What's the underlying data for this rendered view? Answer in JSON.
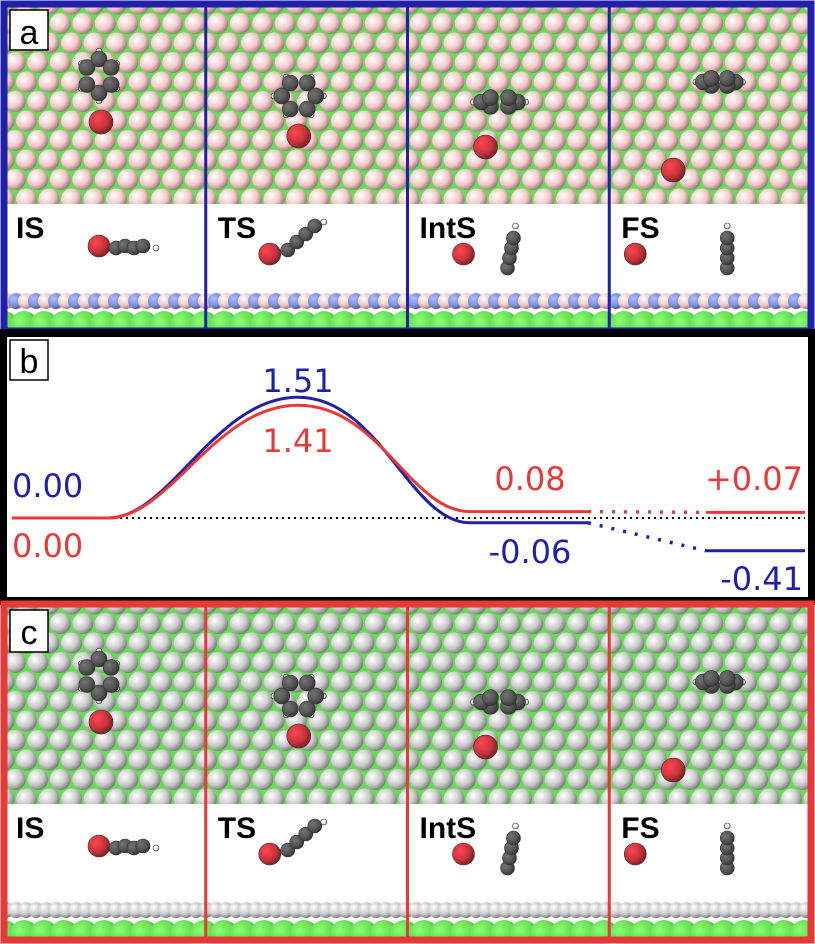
{
  "panels": {
    "a": {
      "label": "a",
      "frame_color": "#1f1fa8",
      "surface_atoms": [
        "#f4c6c6",
        "#66dd55"
      ],
      "side_atoms": [
        "#f4c6c6",
        "#7f8fe0",
        "#66dd55"
      ],
      "states": [
        {
          "label": "IS",
          "step": "is"
        },
        {
          "label": "TS",
          "step": "ts"
        },
        {
          "label": "IntS",
          "step": "ints"
        },
        {
          "label": "FS",
          "step": "fs"
        }
      ]
    },
    "b": {
      "label": "b"
    },
    "c": {
      "label": "c",
      "frame_color": "#e83838",
      "surface_atoms": [
        "#c8c8c8",
        "#66dd55"
      ],
      "side_atoms": [
        "#c8c8c8",
        "#c8c8c8",
        "#66dd55"
      ],
      "states": [
        {
          "label": "IS",
          "step": "is"
        },
        {
          "label": "TS",
          "step": "ts"
        },
        {
          "label": "IntS",
          "step": "ints"
        },
        {
          "label": "FS",
          "step": "fs"
        }
      ]
    }
  },
  "atom_colors": {
    "oxygen": "#c8343c",
    "carbon": "#555555",
    "hydrogen": "#eeeeee"
  },
  "chart_data": {
    "type": "line",
    "categories": [
      "IS",
      "TS",
      "IntS",
      "FS"
    ],
    "series": [
      {
        "color": "#1f1fa8",
        "values": [
          0.0,
          1.51,
          -0.06,
          -0.41
        ],
        "labels": [
          "0.00",
          "1.51",
          "-0.06",
          "-0.41"
        ]
      },
      {
        "color": "#e83838",
        "values": [
          0.0,
          1.41,
          0.08,
          0.07
        ],
        "labels": [
          "0.00",
          "1.41",
          "0.08",
          "+0.07"
        ]
      }
    ],
    "reference_line": 0,
    "grid": false
  }
}
